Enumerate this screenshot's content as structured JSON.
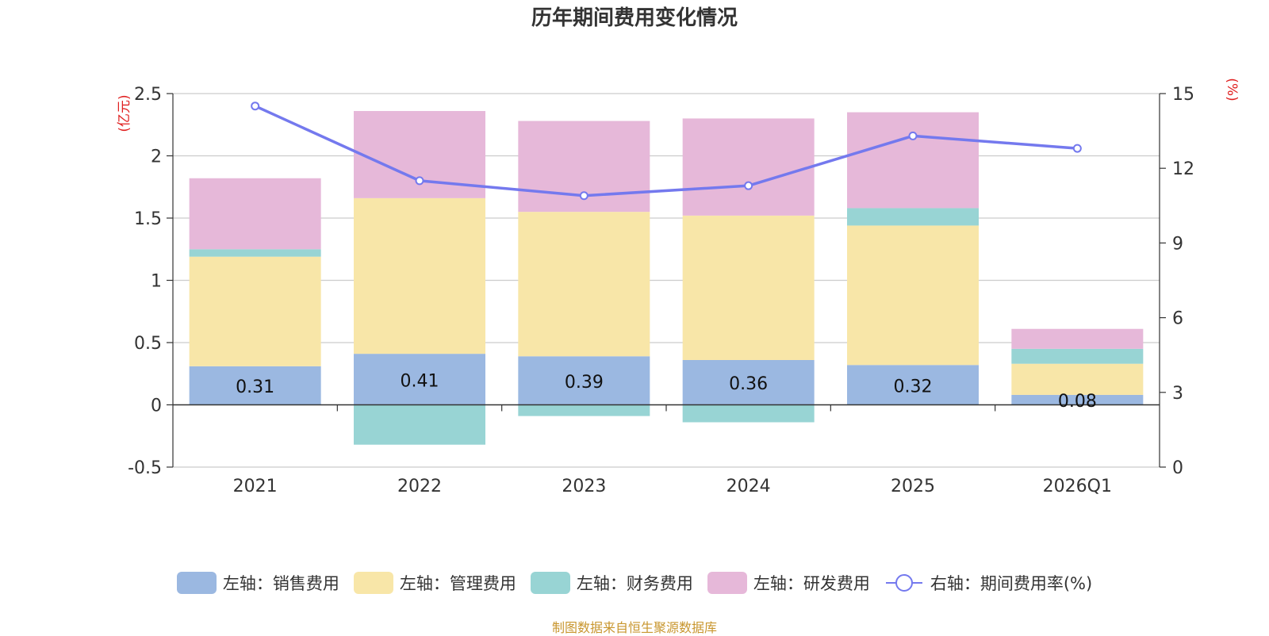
{
  "chart_data": {
    "type": "bar",
    "title": "历年期间费用变化情况",
    "categories": [
      "2021",
      "2022",
      "2023",
      "2024",
      "2025",
      "2026Q1"
    ],
    "left_axis": {
      "unit_label": "(亿元)",
      "min": -0.5,
      "max": 2.5,
      "ticks": [
        "-0.5",
        "0",
        "0.5",
        "1",
        "1.5",
        "2",
        "2.5"
      ],
      "tick_values": [
        -0.5,
        0,
        0.5,
        1,
        1.5,
        2,
        2.5
      ]
    },
    "right_axis": {
      "unit_label": "(%)",
      "min": 0,
      "max": 15,
      "ticks": [
        "0",
        "3",
        "6",
        "9",
        "12",
        "15"
      ],
      "tick_values": [
        0,
        3,
        6,
        9,
        12,
        15
      ]
    },
    "series": [
      {
        "name": "左轴：销售费用",
        "kind": "bar",
        "color": "#9bb8e1",
        "values": [
          0.31,
          0.41,
          0.39,
          0.36,
          0.32,
          0.08
        ],
        "labels": [
          "0.31",
          "0.41",
          "0.39",
          "0.36",
          "0.32",
          "0.08"
        ]
      },
      {
        "name": "左轴：管理费用",
        "kind": "bar",
        "color": "#f8e6a8",
        "values": [
          0.88,
          1.25,
          1.16,
          1.16,
          1.12,
          0.25
        ]
      },
      {
        "name": "左轴：财务费用",
        "kind": "bar",
        "color": "#98d4d4",
        "values": [
          0.06,
          -0.32,
          -0.09,
          -0.14,
          0.14,
          0.12
        ]
      },
      {
        "name": "左轴：研发费用",
        "kind": "bar",
        "color": "#e6b8d9",
        "values": [
          0.57,
          0.7,
          0.73,
          0.78,
          0.77,
          0.16
        ]
      },
      {
        "name": "右轴：期间费用率(%)",
        "kind": "line",
        "axis": "right",
        "color": "#7479ee",
        "values": [
          14.5,
          11.5,
          10.9,
          11.3,
          13.3,
          12.8
        ]
      }
    ]
  },
  "source_note": "制图数据来自恒生聚源数据库"
}
